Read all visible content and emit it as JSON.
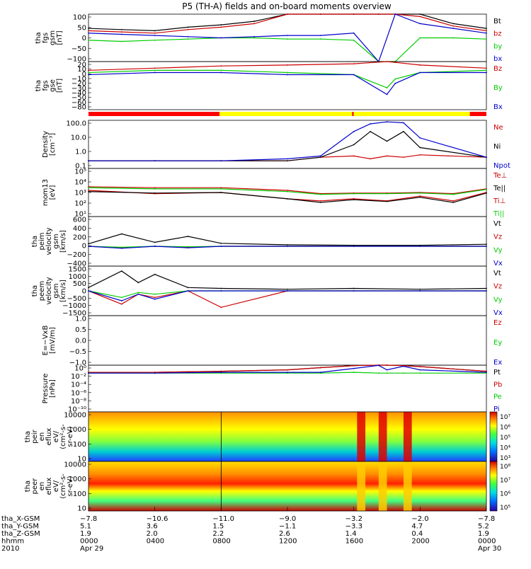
{
  "title": "P5 (TH-A) fields and on-board moments overview",
  "panels": [
    {
      "id": "bfield-gsm",
      "ylabel": [
        "tha",
        "fgs",
        "gsm",
        "[nT]"
      ],
      "ticks": [
        "100",
        "50",
        "0",
        "−50",
        "−100"
      ],
      "legend": [
        {
          "name": "Bt",
          "color": "#000000"
        },
        {
          "name": "bz",
          "color": "#cc0000"
        },
        {
          "name": "by",
          "color": "#00cc00"
        },
        {
          "name": "bx",
          "color": "#0000cc"
        }
      ]
    },
    {
      "id": "bfield-gse",
      "ylabel": [
        "tha",
        "fgs",
        "gse",
        "[nT]"
      ],
      "ticks": [
        "20",
        "10",
        "0",
        "−10",
        "−20",
        "−30",
        "−40",
        "−50",
        "−60",
        "−80"
      ],
      "legend": [
        {
          "name": "Bz",
          "color": "#cc0000"
        },
        {
          "name": "By",
          "color": "#00cc00"
        },
        {
          "name": "Bx",
          "color": "#0000cc"
        }
      ]
    },
    {
      "id": "density",
      "ylabel": [
        "Density",
        "[cm⁻³]"
      ],
      "ticks": [
        "100.0",
        "10.0",
        "1.0",
        "0.1"
      ],
      "legend": [
        {
          "name": "Ne",
          "color": "#cc0000"
        },
        {
          "name": "Ni",
          "color": "#000000"
        },
        {
          "name": "Npot",
          "color": "#0000cc"
        }
      ]
    },
    {
      "id": "temperature",
      "ylabel": [
        "mom13",
        "[eV]"
      ],
      "ticks": [
        "10⁵",
        "10⁴",
        "10³",
        "10²",
        "10¹"
      ],
      "legend": [
        {
          "name": "Te⊥",
          "color": "#cc0000"
        },
        {
          "name": "Te||",
          "color": "#000000"
        },
        {
          "name": "Ti⊥",
          "color": "#cc0000"
        },
        {
          "name": "Ti||",
          "color": "#00cc00"
        }
      ]
    },
    {
      "id": "ion-velocity",
      "ylabel": [
        "tha",
        "peim",
        "velocity",
        "gsm",
        "[km/s]"
      ],
      "ticks": [
        "600",
        "400",
        "200",
        "0",
        "−200",
        "−400"
      ],
      "legend": [
        {
          "name": "Vt",
          "color": "#000000"
        },
        {
          "name": "Vz",
          "color": "#cc0000"
        },
        {
          "name": "Vy",
          "color": "#00cc00"
        },
        {
          "name": "Vx",
          "color": "#0000cc"
        }
      ]
    },
    {
      "id": "electron-velocity",
      "ylabel": [
        "tha",
        "peem",
        "velocity",
        "gsm",
        "[km/s]"
      ],
      "ticks": [
        "1500",
        "1000",
        "500",
        "0",
        "−500",
        "−1000",
        "−1500"
      ],
      "legend": [
        {
          "name": "Vt",
          "color": "#000000"
        },
        {
          "name": "Vz",
          "color": "#cc0000"
        },
        {
          "name": "Vy",
          "color": "#00cc00"
        },
        {
          "name": "Vx",
          "color": "#0000cc"
        }
      ]
    },
    {
      "id": "efield",
      "ylabel": [
        "E=−VxB",
        "[mV/m]"
      ],
      "ticks": [
        "1.0",
        "0.5",
        "0.0",
        "−0.5",
        "−1.0"
      ],
      "legend": [
        {
          "name": "Ez",
          "color": "#cc0000"
        },
        {
          "name": "Ey",
          "color": "#00cc00"
        },
        {
          "name": "Ex",
          "color": "#0000cc"
        }
      ]
    },
    {
      "id": "pressure",
      "ylabel": [
        "Pressure",
        "[nPa]"
      ],
      "ticks": [
        "10⁰",
        "10⁻²",
        "10⁻⁴",
        "10⁻⁶",
        "10⁻⁸",
        "10⁻¹⁰"
      ],
      "legend": [
        {
          "name": "Pt",
          "color": "#000000"
        },
        {
          "name": "Pb",
          "color": "#cc0000"
        },
        {
          "name": "Pe",
          "color": "#00cc00"
        },
        {
          "name": "Pi",
          "color": "#0000cc"
        }
      ]
    },
    {
      "id": "ion-spectrogram",
      "ylabel": [
        "tha",
        "peir",
        "en",
        "eflux",
        "eV/",
        "(cm²-s-",
        "sr-eV)"
      ],
      "ticks": [
        "10000",
        "1000",
        "100",
        "10"
      ],
      "cbar_ticks": [
        "10⁷",
        "10⁶",
        "10⁵",
        "10⁴",
        "10³"
      ]
    },
    {
      "id": "electron-spectrogram",
      "ylabel": [
        "tha",
        "peer",
        "en",
        "eflux",
        "eV/",
        "(cm²-s-",
        "sr-eV)"
      ],
      "ticks": [
        "10000",
        "1000",
        "100",
        "10"
      ],
      "cbar_ticks": [
        "10⁸",
        "10⁷",
        "10⁶",
        "10⁵"
      ]
    }
  ],
  "orbit_rows": [
    {
      "label": "tha_X-GSM",
      "values": [
        "−7.8",
        "−10.6",
        "−11.0",
        "−9.0",
        "−3.2",
        "−2.0",
        "−7.8"
      ]
    },
    {
      "label": "tha_Y-GSM",
      "values": [
        "5.1",
        "3.6",
        "1.5",
        "−1.1",
        "−3.3",
        "4.7",
        "5.2"
      ]
    },
    {
      "label": "tha_Z-GSM",
      "values": [
        "1.9",
        "2.0",
        "2.2",
        "2.6",
        "1.4",
        "0.4",
        "1.9"
      ]
    },
    {
      "label": "hhmm",
      "values": [
        "0000",
        "0400",
        "0800",
        "1200",
        "1600",
        "2000",
        "0000"
      ]
    },
    {
      "label": "2010",
      "values": [
        "Apr 29",
        "",
        "",
        "",
        "",
        "",
        "Apr 30"
      ]
    }
  ],
  "mode_bar": {
    "colors": {
      "red": "#ff0000",
      "yellow": "#ffff00"
    }
  },
  "chart_data": [
    {
      "type": "line",
      "panel": "bfield-gsm",
      "ylim": [
        -100,
        100
      ],
      "x": [
        "00:00",
        "02:00",
        "04:00",
        "06:00",
        "08:00",
        "10:00",
        "12:00",
        "14:00",
        "16:00",
        "17:30",
        "18:30",
        "20:00",
        "22:00",
        "24:00"
      ],
      "series": [
        {
          "name": "Bt",
          "values": [
            40,
            35,
            30,
            45,
            55,
            70,
            100,
            100,
            100,
            100,
            100,
            100,
            60,
            40
          ]
        },
        {
          "name": "bz",
          "values": [
            30,
            25,
            20,
            35,
            45,
            60,
            100,
            100,
            100,
            100,
            100,
            90,
            50,
            30
          ]
        },
        {
          "name": "by",
          "values": [
            -10,
            -15,
            -10,
            -5,
            0,
            0,
            -5,
            -5,
            -10,
            -100,
            -100,
            0,
            0,
            -5
          ]
        },
        {
          "name": "bx",
          "values": [
            20,
            15,
            10,
            5,
            0,
            5,
            10,
            10,
            20,
            -100,
            100,
            60,
            40,
            20
          ]
        }
      ]
    },
    {
      "type": "line",
      "panel": "bfield-gse",
      "ylim": [
        -90,
        20
      ],
      "x": [
        "00:00",
        "04:00",
        "08:00",
        "12:00",
        "16:00",
        "18:00",
        "18:30",
        "20:00",
        "24:00"
      ],
      "series": [
        {
          "name": "Bz",
          "values": [
            0,
            5,
            10,
            12,
            15,
            20,
            18,
            12,
            5
          ]
        },
        {
          "name": "By",
          "values": [
            -5,
            0,
            0,
            -5,
            -10,
            -40,
            -20,
            -5,
            0
          ]
        },
        {
          "name": "Bx",
          "values": [
            -10,
            -5,
            -5,
            -10,
            -10,
            -55,
            -30,
            -5,
            -5
          ]
        }
      ]
    },
    {
      "type": "line",
      "panel": "density",
      "ylim": [
        0.1,
        100
      ],
      "yscale": "log",
      "x": [
        "00:00",
        "04:00",
        "08:00",
        "12:00",
        "14:00",
        "16:00",
        "17:00",
        "18:00",
        "19:00",
        "20:00",
        "24:00"
      ],
      "series": [
        {
          "name": "Ne",
          "values": [
            0.3,
            0.3,
            0.3,
            0.3,
            0.5,
            0.6,
            0.4,
            0.6,
            0.5,
            0.7,
            0.5
          ]
        },
        {
          "name": "Ni",
          "values": [
            0.3,
            0.3,
            0.3,
            0.3,
            0.5,
            3.0,
            20,
            5,
            20,
            2,
            0.5
          ]
        },
        {
          "name": "Npot",
          "values": [
            0.3,
            0.3,
            0.3,
            0.4,
            0.6,
            20,
            60,
            80,
            70,
            8,
            0.5
          ]
        }
      ]
    },
    {
      "type": "line",
      "panel": "temperature",
      "ylim": [
        10,
        100000
      ],
      "yscale": "log",
      "x": [
        "00:00",
        "04:00",
        "08:00",
        "12:00",
        "14:00",
        "16:00",
        "18:00",
        "20:00",
        "22:00",
        "24:00"
      ],
      "series": [
        {
          "name": "Te⊥",
          "values": [
            1500,
            800,
            1000,
            300,
            200,
            300,
            200,
            500,
            200,
            1000
          ]
        },
        {
          "name": "Te||",
          "values": [
            1200,
            900,
            1000,
            300,
            150,
            250,
            180,
            400,
            150,
            900
          ]
        },
        {
          "name": "Ti⊥",
          "values": [
            3000,
            2500,
            2500,
            1500,
            800,
            900,
            900,
            1000,
            800,
            2000
          ]
        },
        {
          "name": "Ti||",
          "values": [
            2500,
            2000,
            2000,
            1200,
            700,
            800,
            800,
            900,
            700,
            1800
          ]
        }
      ]
    },
    {
      "type": "line",
      "panel": "ion-velocity",
      "ylim": [
        -400,
        600
      ],
      "x": [
        "00:00",
        "02:00",
        "04:00",
        "06:00",
        "08:00",
        "12:00",
        "16:00",
        "20:00",
        "24:00"
      ],
      "series": [
        {
          "name": "Vt",
          "values": [
            50,
            250,
            80,
            200,
            60,
            30,
            20,
            20,
            40
          ]
        },
        {
          "name": "Vz",
          "values": [
            0,
            -30,
            0,
            -20,
            0,
            0,
            0,
            0,
            0
          ]
        },
        {
          "name": "Vy",
          "values": [
            0,
            -20,
            0,
            -10,
            0,
            0,
            0,
            0,
            0
          ]
        },
        {
          "name": "Vx",
          "values": [
            0,
            -40,
            0,
            -30,
            0,
            0,
            0,
            0,
            0
          ]
        }
      ]
    },
    {
      "type": "line",
      "panel": "electron-velocity",
      "ylim": [
        -1500,
        1500
      ],
      "x": [
        "00:00",
        "02:00",
        "03:00",
        "04:00",
        "06:00",
        "08:00",
        "12:00",
        "16:00",
        "20:00",
        "24:00"
      ],
      "series": [
        {
          "name": "Vt",
          "values": [
            200,
            1200,
            500,
            1000,
            200,
            150,
            100,
            150,
            100,
            150
          ]
        },
        {
          "name": "Vz",
          "values": [
            0,
            -800,
            -200,
            -400,
            0,
            -1000,
            0,
            0,
            0,
            0
          ]
        },
        {
          "name": "Vy",
          "values": [
            0,
            -400,
            -100,
            -200,
            0,
            0,
            0,
            0,
            0,
            0
          ]
        },
        {
          "name": "Vx",
          "values": [
            0,
            -600,
            -200,
            -500,
            0,
            0,
            0,
            0,
            0,
            0
          ]
        }
      ]
    },
    {
      "type": "line",
      "panel": "pressure",
      "ylim": [
        1e-10,
        1
      ],
      "yscale": "log",
      "x": [
        "00:00",
        "04:00",
        "08:00",
        "12:00",
        "14:00",
        "16:00",
        "17:30",
        "18:00",
        "19:00",
        "20:00",
        "24:00"
      ],
      "series": [
        {
          "name": "Pt",
          "values": [
            0.03,
            0.03,
            0.05,
            0.1,
            0.3,
            0.8,
            1.0,
            1.0,
            0.8,
            0.5,
            0.05
          ]
        },
        {
          "name": "Pb",
          "values": [
            0.03,
            0.03,
            0.05,
            0.1,
            0.3,
            0.8,
            1.0,
            1.0,
            0.8,
            0.5,
            0.05
          ]
        },
        {
          "name": "Pe",
          "values": [
            0.02,
            0.02,
            0.02,
            0.02,
            0.02,
            0.03,
            0.02,
            0.02,
            0.02,
            0.02,
            0.02
          ]
        },
        {
          "name": "Pi",
          "values": [
            0.02,
            0.02,
            0.03,
            0.03,
            0.03,
            0.2,
            0.9,
            0.1,
            0.6,
            0.1,
            0.03
          ]
        }
      ]
    },
    {
      "type": "heatmap",
      "panel": "ion-spectrogram",
      "ylim": [
        10,
        20000
      ],
      "yscale": "log",
      "zlim": [
        1000,
        10000000
      ]
    },
    {
      "type": "heatmap",
      "panel": "electron-spectrogram",
      "ylim": [
        10,
        20000
      ],
      "yscale": "log",
      "zlim": [
        100000,
        100000000
      ]
    }
  ]
}
